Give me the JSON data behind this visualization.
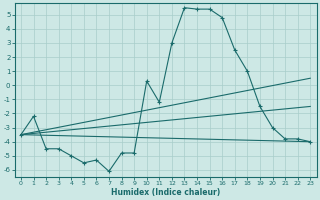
{
  "xlabel": "Humidex (Indice chaleur)",
  "background_color": "#cde8e5",
  "grid_color": "#a8ceca",
  "line_color": "#1a6b6b",
  "xlim": [
    -0.5,
    23.5
  ],
  "ylim": [
    -6.5,
    5.8
  ],
  "xticks": [
    0,
    1,
    2,
    3,
    4,
    5,
    6,
    7,
    8,
    9,
    10,
    11,
    12,
    13,
    14,
    15,
    16,
    17,
    18,
    19,
    20,
    21,
    22,
    23
  ],
  "yticks": [
    -6,
    -5,
    -4,
    -3,
    -2,
    -1,
    0,
    1,
    2,
    3,
    4,
    5
  ],
  "curve1_x": [
    0,
    1,
    2,
    3,
    4,
    5,
    6,
    7,
    8,
    9,
    10,
    11,
    12,
    13,
    14,
    15,
    16,
    17,
    18,
    19,
    20,
    21,
    22,
    23
  ],
  "curve1_y": [
    -3.5,
    -2.2,
    -4.5,
    -4.5,
    -5.0,
    -5.5,
    -5.3,
    -6.1,
    -4.8,
    -4.8,
    0.3,
    -1.2,
    3.0,
    5.5,
    5.4,
    5.4,
    4.8,
    2.5,
    1.0,
    -1.5,
    -3.0,
    -3.8,
    -3.8,
    -4.0
  ],
  "curve2_x": [
    0,
    23
  ],
  "curve2_y": [
    -3.5,
    -4.0
  ],
  "curve3_x": [
    0,
    23
  ],
  "curve3_y": [
    -3.5,
    -1.5
  ],
  "curve4_x": [
    0,
    23
  ],
  "curve4_y": [
    -3.5,
    0.5
  ]
}
